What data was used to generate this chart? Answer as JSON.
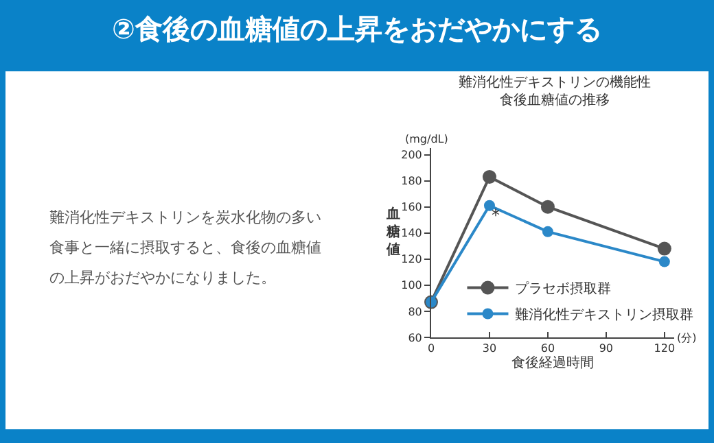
{
  "chart_data": {
    "type": "line",
    "title": "難消化性デキストリンの機能性",
    "subtitle": "食後血糖値の推移",
    "xlabel": "食後経過時間",
    "ylabel": "血糖値",
    "x": [
      0,
      30,
      60,
      120
    ],
    "series": [
      {
        "name": "プラセボ摂取群",
        "color": "#555555",
        "values": [
          87,
          183,
          160,
          128
        ]
      },
      {
        "name": "難消化性デキストリン摂取群",
        "color": "#2b88c8",
        "values": [
          87,
          161,
          141,
          118
        ]
      }
    ],
    "xlim": [
      0,
      125
    ],
    "xticks": [
      0,
      30,
      60,
      90,
      120
    ],
    "ylim": [
      60,
      205
    ],
    "yticks": [
      60,
      80,
      100,
      120,
      140,
      160,
      180,
      200
    ],
    "grid": false,
    "legend": "bottom right",
    "marker": "circle",
    "line_style": "solid",
    "annotations": [
      "②食後の血糖値の上昇をおだやかにする",
      "難消化性デキストリンを炭水化物の多い食事と一緒に摂取すると、食後の血糖値の上昇がおだやかになりました。",
      "(mg/dL)",
      "(分)",
      {
        "text": "*",
        "x": 30,
        "y": 153
      }
    ]
  }
}
